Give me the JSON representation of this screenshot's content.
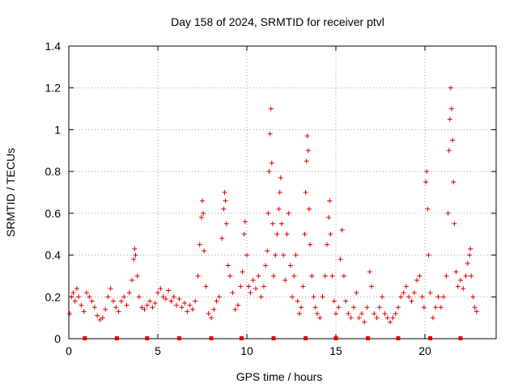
{
  "chart_data": {
    "type": "scatter",
    "title": "Day 158 of 2024, SRMTID for receiver ptvl",
    "xlabel": "GPS time / hours",
    "ylabel": "SRMTID / TECUs",
    "xlim": [
      0,
      24
    ],
    "ylim": [
      0,
      1.4
    ],
    "xticks": [
      0,
      5,
      10,
      15,
      20
    ],
    "xtick_labels": [
      "0",
      "5",
      "10",
      "15",
      "20"
    ],
    "yticks": [
      0,
      0.2,
      0.4,
      0.6,
      0.8,
      1.0,
      1.2,
      1.4
    ],
    "ytick_labels": [
      "0",
      "0.2",
      "0.4",
      "0.6",
      "0.8",
      "1",
      "1.2",
      "1.4"
    ],
    "grid": true,
    "marker": "plus",
    "color": "#dd0000",
    "baseline_markers_x": [
      0.9,
      2.7,
      4.4,
      6.2,
      8.0,
      9.7,
      11.5,
      13.3,
      15.0,
      16.8,
      18.5,
      20.3,
      22.0
    ],
    "series": [
      {
        "name": "SRMTID",
        "points": [
          [
            0.05,
            0.12
          ],
          [
            0.15,
            0.2
          ],
          [
            0.25,
            0.22
          ],
          [
            0.35,
            0.18
          ],
          [
            0.45,
            0.24
          ],
          [
            0.55,
            0.2
          ],
          [
            0.7,
            0.16
          ],
          [
            0.85,
            0.13
          ],
          [
            1.0,
            0.22
          ],
          [
            1.15,
            0.2
          ],
          [
            1.3,
            0.18
          ],
          [
            1.45,
            0.15
          ],
          [
            1.6,
            0.11
          ],
          [
            1.75,
            0.09
          ],
          [
            1.9,
            0.1
          ],
          [
            2.05,
            0.14
          ],
          [
            2.2,
            0.2
          ],
          [
            2.35,
            0.24
          ],
          [
            2.5,
            0.18
          ],
          [
            2.65,
            0.15
          ],
          [
            2.8,
            0.13
          ],
          [
            2.95,
            0.18
          ],
          [
            3.1,
            0.2
          ],
          [
            3.25,
            0.16
          ],
          [
            3.4,
            0.22
          ],
          [
            3.55,
            0.28
          ],
          [
            3.65,
            0.38
          ],
          [
            3.7,
            0.43
          ],
          [
            3.75,
            0.4
          ],
          [
            3.85,
            0.3
          ],
          [
            3.95,
            0.2
          ],
          [
            4.1,
            0.15
          ],
          [
            4.25,
            0.14
          ],
          [
            4.4,
            0.16
          ],
          [
            4.55,
            0.18
          ],
          [
            4.7,
            0.15
          ],
          [
            4.85,
            0.17
          ],
          [
            5.0,
            0.22
          ],
          [
            5.15,
            0.24
          ],
          [
            5.3,
            0.2
          ],
          [
            5.45,
            0.19
          ],
          [
            5.6,
            0.23
          ],
          [
            5.75,
            0.18
          ],
          [
            5.9,
            0.2
          ],
          [
            6.05,
            0.16
          ],
          [
            6.2,
            0.19
          ],
          [
            6.35,
            0.15
          ],
          [
            6.5,
            0.17
          ],
          [
            6.65,
            0.13
          ],
          [
            6.8,
            0.16
          ],
          [
            6.95,
            0.14
          ],
          [
            7.1,
            0.18
          ],
          [
            7.25,
            0.3
          ],
          [
            7.35,
            0.45
          ],
          [
            7.45,
            0.58
          ],
          [
            7.5,
            0.66
          ],
          [
            7.55,
            0.6
          ],
          [
            7.6,
            0.42
          ],
          [
            7.7,
            0.25
          ],
          [
            7.85,
            0.12
          ],
          [
            8.0,
            0.1
          ],
          [
            8.15,
            0.14
          ],
          [
            8.3,
            0.18
          ],
          [
            8.45,
            0.2
          ],
          [
            8.6,
            0.48
          ],
          [
            8.7,
            0.62
          ],
          [
            8.75,
            0.7
          ],
          [
            8.8,
            0.66
          ],
          [
            8.85,
            0.55
          ],
          [
            8.95,
            0.35
          ],
          [
            9.05,
            0.3
          ],
          [
            9.2,
            0.22
          ],
          [
            9.35,
            0.14
          ],
          [
            9.5,
            0.16
          ],
          [
            9.65,
            0.25
          ],
          [
            9.75,
            0.32
          ],
          [
            9.85,
            0.5
          ],
          [
            9.9,
            0.56
          ],
          [
            10.0,
            0.4
          ],
          [
            10.1,
            0.25
          ],
          [
            10.2,
            0.22
          ],
          [
            10.35,
            0.28
          ],
          [
            10.5,
            0.24
          ],
          [
            10.65,
            0.3
          ],
          [
            10.8,
            0.2
          ],
          [
            10.95,
            0.25
          ],
          [
            11.05,
            0.35
          ],
          [
            11.15,
            0.42
          ],
          [
            11.2,
            0.6
          ],
          [
            11.25,
            0.8
          ],
          [
            11.3,
            0.98
          ],
          [
            11.35,
            1.1
          ],
          [
            11.4,
            0.84
          ],
          [
            11.45,
            0.55
          ],
          [
            11.5,
            0.3
          ],
          [
            11.6,
            0.4
          ],
          [
            11.7,
            0.5
          ],
          [
            11.8,
            0.62
          ],
          [
            11.85,
            0.7
          ],
          [
            11.9,
            0.77
          ],
          [
            11.95,
            0.55
          ],
          [
            12.05,
            0.4
          ],
          [
            12.15,
            0.28
          ],
          [
            12.25,
            0.5
          ],
          [
            12.35,
            0.6
          ],
          [
            12.45,
            0.35
          ],
          [
            12.55,
            0.2
          ],
          [
            12.65,
            0.3
          ],
          [
            12.75,
            0.4
          ],
          [
            12.85,
            0.18
          ],
          [
            12.95,
            0.12
          ],
          [
            13.05,
            0.15
          ],
          [
            13.15,
            0.25
          ],
          [
            13.25,
            0.5
          ],
          [
            13.3,
            0.7
          ],
          [
            13.35,
            0.85
          ],
          [
            13.4,
            0.97
          ],
          [
            13.45,
            0.9
          ],
          [
            13.5,
            0.62
          ],
          [
            13.55,
            0.45
          ],
          [
            13.65,
            0.3
          ],
          [
            13.75,
            0.2
          ],
          [
            13.85,
            0.15
          ],
          [
            13.95,
            0.12
          ],
          [
            14.1,
            0.1
          ],
          [
            14.25,
            0.2
          ],
          [
            14.4,
            0.3
          ],
          [
            14.5,
            0.45
          ],
          [
            14.6,
            0.58
          ],
          [
            14.65,
            0.66
          ],
          [
            14.7,
            0.5
          ],
          [
            14.8,
            0.3
          ],
          [
            14.9,
            0.18
          ],
          [
            15.0,
            0.12
          ],
          [
            15.15,
            0.15
          ],
          [
            15.25,
            0.38
          ],
          [
            15.35,
            0.52
          ],
          [
            15.45,
            0.3
          ],
          [
            15.55,
            0.18
          ],
          [
            15.7,
            0.12
          ],
          [
            15.85,
            0.1
          ],
          [
            16.0,
            0.15
          ],
          [
            16.15,
            0.22
          ],
          [
            16.3,
            0.1
          ],
          [
            16.45,
            0.12
          ],
          [
            16.6,
            0.08
          ],
          [
            16.75,
            0.15
          ],
          [
            16.9,
            0.32
          ],
          [
            17.0,
            0.25
          ],
          [
            17.15,
            0.12
          ],
          [
            17.3,
            0.1
          ],
          [
            17.45,
            0.15
          ],
          [
            17.6,
            0.2
          ],
          [
            17.75,
            0.12
          ],
          [
            17.9,
            0.1
          ],
          [
            18.05,
            0.08
          ],
          [
            18.2,
            0.1
          ],
          [
            18.35,
            0.12
          ],
          [
            18.5,
            0.15
          ],
          [
            18.65,
            0.2
          ],
          [
            18.8,
            0.22
          ],
          [
            18.95,
            0.25
          ],
          [
            19.1,
            0.2
          ],
          [
            19.25,
            0.18
          ],
          [
            19.4,
            0.22
          ],
          [
            19.55,
            0.28
          ],
          [
            19.7,
            0.3
          ],
          [
            19.85,
            0.2
          ],
          [
            19.95,
            0.15
          ],
          [
            20.05,
            0.75
          ],
          [
            20.1,
            0.8
          ],
          [
            20.15,
            0.62
          ],
          [
            20.2,
            0.4
          ],
          [
            20.3,
            0.22
          ],
          [
            20.45,
            0.1
          ],
          [
            20.6,
            0.15
          ],
          [
            20.75,
            0.2
          ],
          [
            20.9,
            0.15
          ],
          [
            21.05,
            0.2
          ],
          [
            21.2,
            0.3
          ],
          [
            21.3,
            0.6
          ],
          [
            21.35,
            0.9
          ],
          [
            21.4,
            1.05
          ],
          [
            21.45,
            1.2
          ],
          [
            21.5,
            1.1
          ],
          [
            21.55,
            0.95
          ],
          [
            21.6,
            0.75
          ],
          [
            21.65,
            0.55
          ],
          [
            21.75,
            0.32
          ],
          [
            21.85,
            0.25
          ],
          [
            22.0,
            0.28
          ],
          [
            22.15,
            0.24
          ],
          [
            22.3,
            0.3
          ],
          [
            22.4,
            0.36
          ],
          [
            22.5,
            0.4
          ],
          [
            22.55,
            0.43
          ],
          [
            22.6,
            0.3
          ],
          [
            22.7,
            0.2
          ],
          [
            22.8,
            0.15
          ],
          [
            22.9,
            0.13
          ]
        ]
      }
    ]
  }
}
